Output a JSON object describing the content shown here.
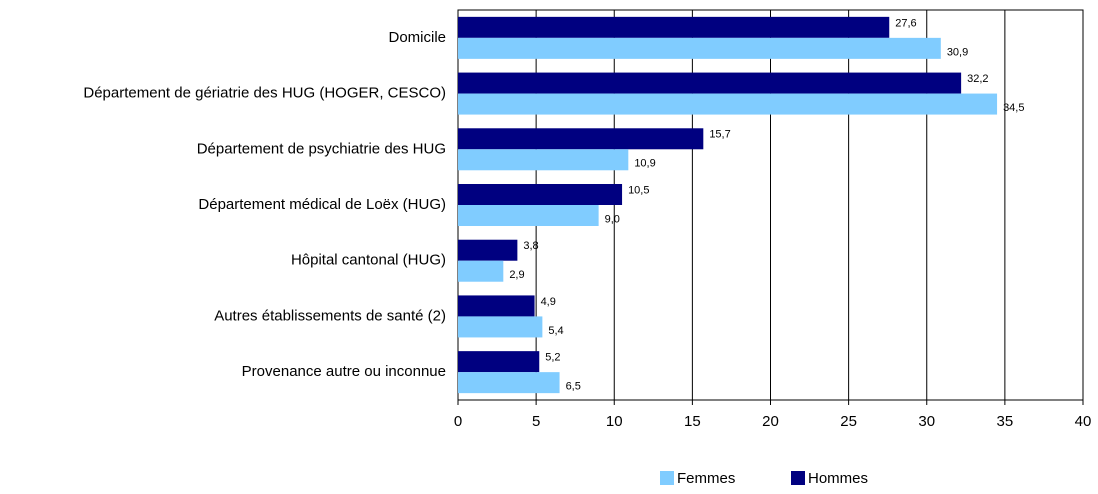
{
  "chart_data": {
    "type": "barh",
    "categories": [
      "Domicile",
      "Département de gériatrie des HUG  (HOGER, CESCO)",
      "Département de psychiatrie des HUG",
      "Département médical de Loëx (HUG)",
      "Hôpital cantonal (HUG)",
      "Autres établissements de santé (2)",
      "Provenance autre ou inconnue"
    ],
    "series": [
      {
        "name": "Hommes",
        "color": "#000080",
        "values": [
          27.6,
          32.2,
          15.7,
          10.5,
          3.8,
          4.9,
          5.2
        ],
        "value_labels": [
          "27,6",
          "32,2",
          "15,7",
          "10,5",
          "3,8",
          "4,9",
          "5,2"
        ]
      },
      {
        "name": "Femmes",
        "color": "#80ccff",
        "values": [
          30.9,
          34.5,
          10.9,
          9.0,
          2.9,
          5.4,
          6.5
        ],
        "value_labels": [
          "30,9",
          "34,5",
          "10,9",
          "9,0",
          "2,9",
          "5,4",
          "6,5"
        ]
      }
    ],
    "xlim": [
      0,
      40
    ],
    "xticks": [
      0,
      5,
      10,
      15,
      20,
      25,
      30,
      35,
      40
    ],
    "grid": true,
    "legend": "bottom",
    "legend_order": [
      "Femmes",
      "Hommes"
    ]
  }
}
